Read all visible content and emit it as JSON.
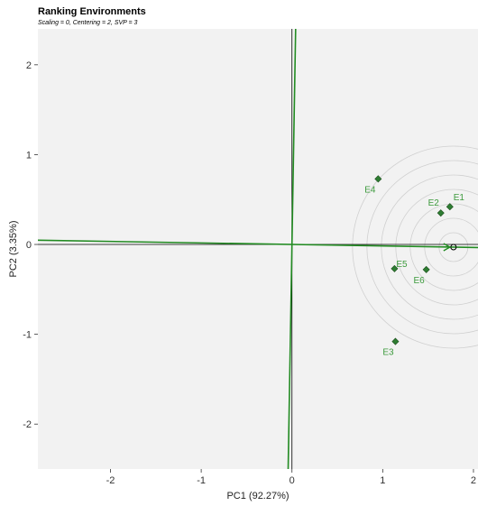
{
  "chart_data": {
    "type": "scatter",
    "title": "Ranking Environments",
    "subtitle": "Scaling = 0, Centering = 2, SVP = 3",
    "xlabel": "PC1 (92.27%)",
    "ylabel": "PC2 (3.35%)",
    "xlim": [
      -2.8,
      2.05
    ],
    "ylim": [
      -2.5,
      2.4
    ],
    "x_ticks": [
      -2,
      -1,
      0,
      1,
      2
    ],
    "y_ticks": [
      -2,
      -1,
      0,
      1,
      2
    ],
    "x_tick_labels": [
      "-2",
      "-1",
      "0",
      "1",
      "2"
    ],
    "y_tick_labels": [
      "-2",
      "-1",
      "0",
      "1",
      "2"
    ],
    "grid": false,
    "background_color": "#f2f2f2",
    "point_color": "#2e7d32",
    "label_color": "#3c9a3c",
    "line_color": "#228b22",
    "circle_color": "#d0d0d0",
    "points": [
      {
        "label": "E1",
        "x": 1.74,
        "y": 0.42
      },
      {
        "label": "E2",
        "x": 1.64,
        "y": 0.35
      },
      {
        "label": "E3",
        "x": 1.14,
        "y": -1.08
      },
      {
        "label": "E4",
        "x": 0.95,
        "y": 0.73
      },
      {
        "label": "E5",
        "x": 1.13,
        "y": -0.27
      },
      {
        "label": "E6",
        "x": 1.48,
        "y": -0.28
      }
    ],
    "average_environment": {
      "x": 1.78,
      "y": -0.03
    },
    "concentric_circles": 7
  }
}
